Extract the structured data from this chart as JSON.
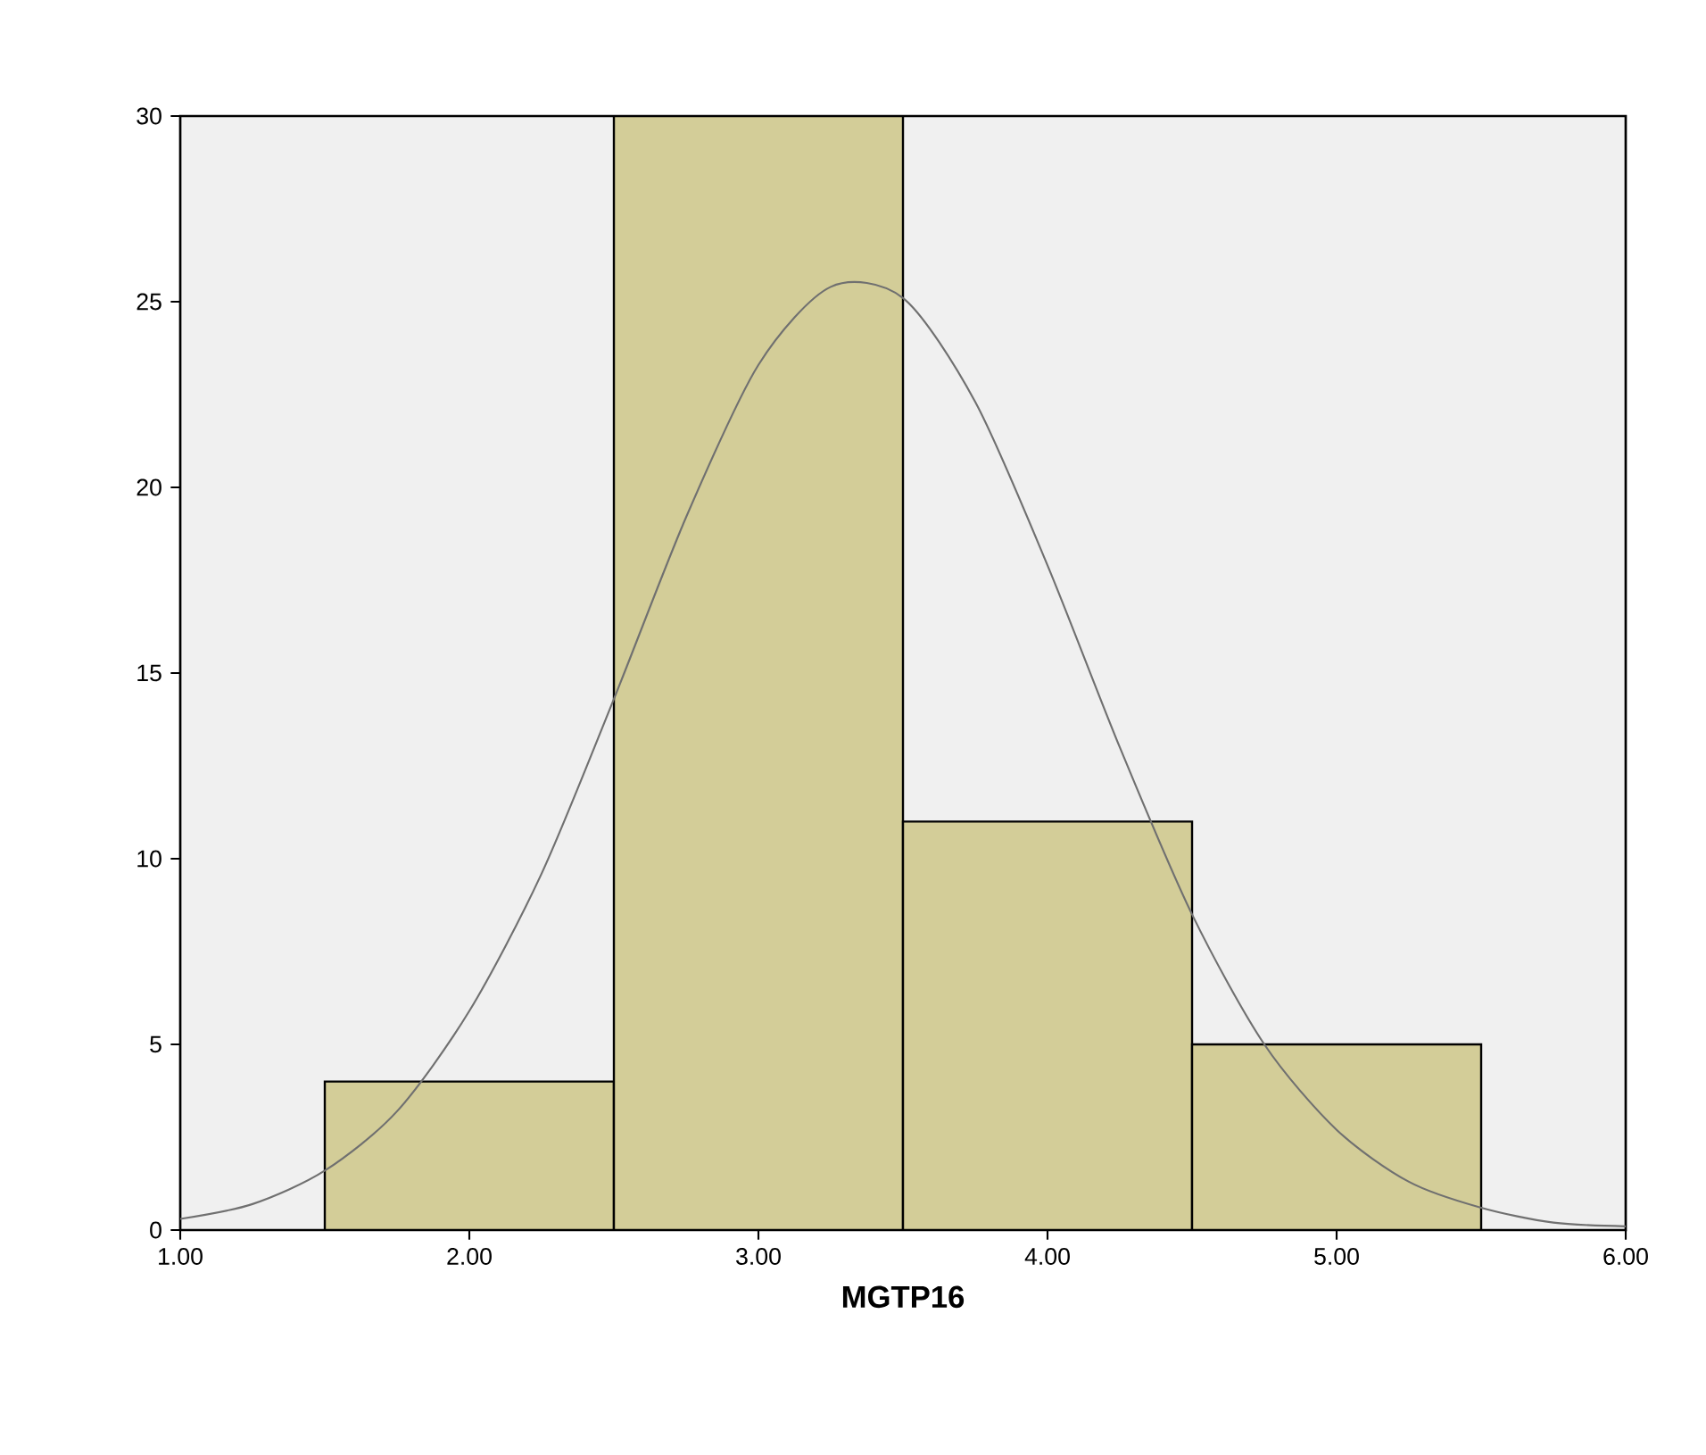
{
  "chart_data": {
    "type": "histogram",
    "xlabel": "MGTP16",
    "xlim": [
      1,
      6
    ],
    "ylim": [
      0,
      30
    ],
    "xticks": [
      {
        "value": 1,
        "label": "1.00"
      },
      {
        "value": 2,
        "label": "2.00"
      },
      {
        "value": 3,
        "label": "3.00"
      },
      {
        "value": 4,
        "label": "4.00"
      },
      {
        "value": 5,
        "label": "5.00"
      },
      {
        "value": 6,
        "label": "6.00"
      }
    ],
    "yticks": [
      0,
      5,
      10,
      15,
      20,
      25,
      30
    ],
    "grid": false,
    "series": [
      {
        "color": "#d3cd98",
        "bins": [
          1.5,
          2.5,
          3.5,
          4.5,
          5.5
        ],
        "values": [
          4,
          30,
          11,
          5
        ]
      },
      {
        "type": "line",
        "color": "#707070",
        "marker": "none",
        "line_style": "solid",
        "x": [
          1.0,
          1.25,
          1.5,
          1.75,
          2.0,
          2.25,
          2.5,
          2.75,
          3.0,
          3.25,
          3.5,
          3.75,
          4.0,
          4.25,
          4.5,
          4.75,
          5.0,
          5.25,
          5.5,
          5.75,
          6.0
        ],
        "values": [
          0.3,
          0.7,
          1.6,
          3.2,
          5.9,
          9.6,
          14.3,
          19.2,
          23.3,
          25.4,
          25.1,
          22.3,
          17.9,
          13.0,
          8.5,
          5.0,
          2.7,
          1.3,
          0.6,
          0.2,
          0.1
        ]
      }
    ]
  }
}
